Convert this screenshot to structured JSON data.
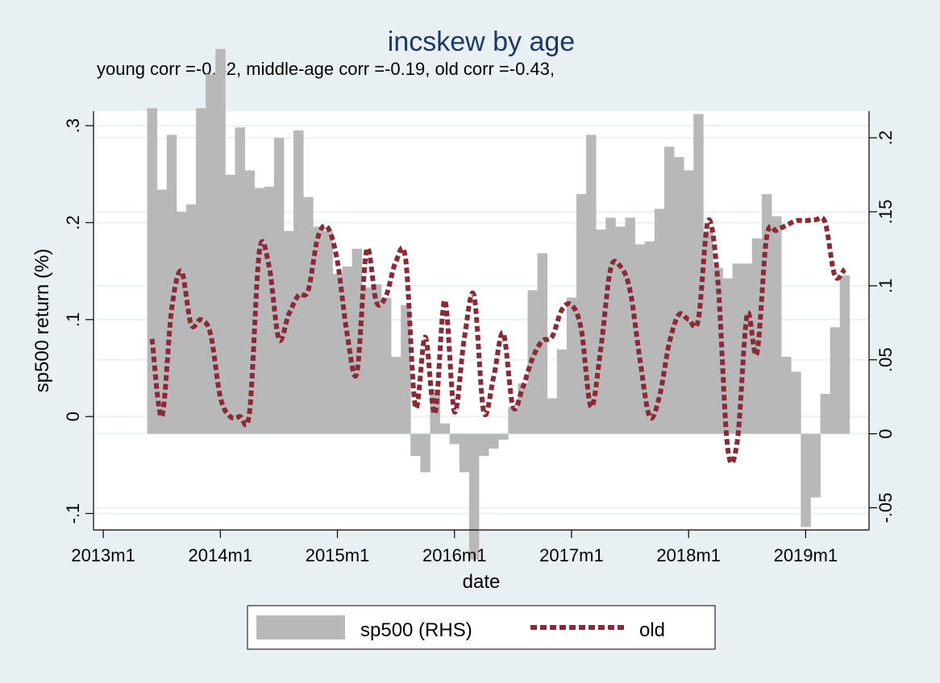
{
  "chart_data": {
    "type": "bar+line",
    "title": "incskew by age",
    "subtitle": "young corr =-0.42, middle-age corr =-0.19, old corr =-0.43,",
    "xlabel": "date",
    "ylabel": "sp500 return (%)",
    "x_ticks": [
      "2013m1",
      "2014m1",
      "2015m1",
      "2016m1",
      "2017m1",
      "2018m1",
      "2019m1"
    ],
    "x_tick_values": [
      0,
      12,
      24,
      36,
      48,
      60,
      72
    ],
    "xlim": [
      -1,
      78.5
    ],
    "left_axis": {
      "ylim": [
        -0.117,
        0.315
      ],
      "ticks": [
        -0.1,
        0,
        0.1,
        0.2,
        0.3
      ],
      "tick_labels": [
        "-.1",
        "0",
        ".1",
        ".2",
        ".3"
      ]
    },
    "right_axis": {
      "ylim": [
        -0.065,
        0.218
      ],
      "ticks": [
        -0.05,
        0,
        0.05,
        0.1,
        0.15,
        0.2
      ],
      "tick_labels": [
        "-.05",
        "0",
        ".05",
        ".1",
        ".15",
        ".2"
      ]
    },
    "grid": true,
    "legend": "bottom",
    "series": [
      {
        "name": "sp500 (RHS)",
        "type": "bar",
        "color": "#b8b8b8",
        "start_month": 5,
        "values": [
          0.22,
          0.165,
          0.202,
          0.15,
          0.155,
          0.22,
          0.243,
          0.26,
          0.175,
          0.207,
          0.178,
          0.166,
          0.167,
          0.2,
          0.137,
          0.205,
          0.16,
          0.14,
          0.137,
          0.108,
          0.113,
          0.125,
          0.099,
          0.101,
          0.092,
          0.052,
          0.087,
          -0.015,
          -0.026,
          0.03,
          0.007,
          -0.007,
          -0.026,
          -0.085,
          -0.015,
          -0.01,
          -0.004,
          0.018,
          0.034,
          0.097,
          0.122,
          0.024,
          0.057,
          0.092,
          0.162,
          0.202,
          0.138,
          0.146,
          0.14,
          0.146,
          0.128,
          0.13,
          0.152,
          0.194,
          0.187,
          0.178,
          0.216,
          0.137,
          0.112,
          0.105,
          0.115,
          0.115,
          0.132,
          0.162,
          0.147,
          0.052,
          0.042,
          -0.063,
          -0.043,
          0.027,
          0.072,
          0.107
        ]
      },
      {
        "name": "old",
        "type": "line",
        "style": "dotted",
        "color": "#8b2a35",
        "start_month": 5,
        "values": [
          0.08,
          0.0,
          0.11,
          0.15,
          0.095,
          0.1,
          0.085,
          0.02,
          0.0,
          0.0,
          0.005,
          0.17,
          0.155,
          0.08,
          0.105,
          0.125,
          0.13,
          0.185,
          0.195,
          0.16,
          0.085,
          0.045,
          0.172,
          0.118,
          0.125,
          0.16,
          0.162,
          0.01,
          0.082,
          0.003,
          0.12,
          0.005,
          0.08,
          0.125,
          0.005,
          0.04,
          0.086,
          0.01,
          0.03,
          0.06,
          0.078,
          0.082,
          0.11,
          0.115,
          0.09,
          0.01,
          0.07,
          0.152,
          0.155,
          0.13,
          0.06,
          0.0,
          0.02,
          0.075,
          0.105,
          0.1,
          0.1,
          0.202,
          0.14,
          -0.032,
          -0.025,
          0.105,
          0.065,
          0.185,
          0.192,
          0.197,
          0.202,
          0.202,
          0.203,
          0.2,
          0.145,
          0.152
        ]
      }
    ],
    "legend_entries": [
      "sp500 (RHS)",
      "old"
    ]
  }
}
